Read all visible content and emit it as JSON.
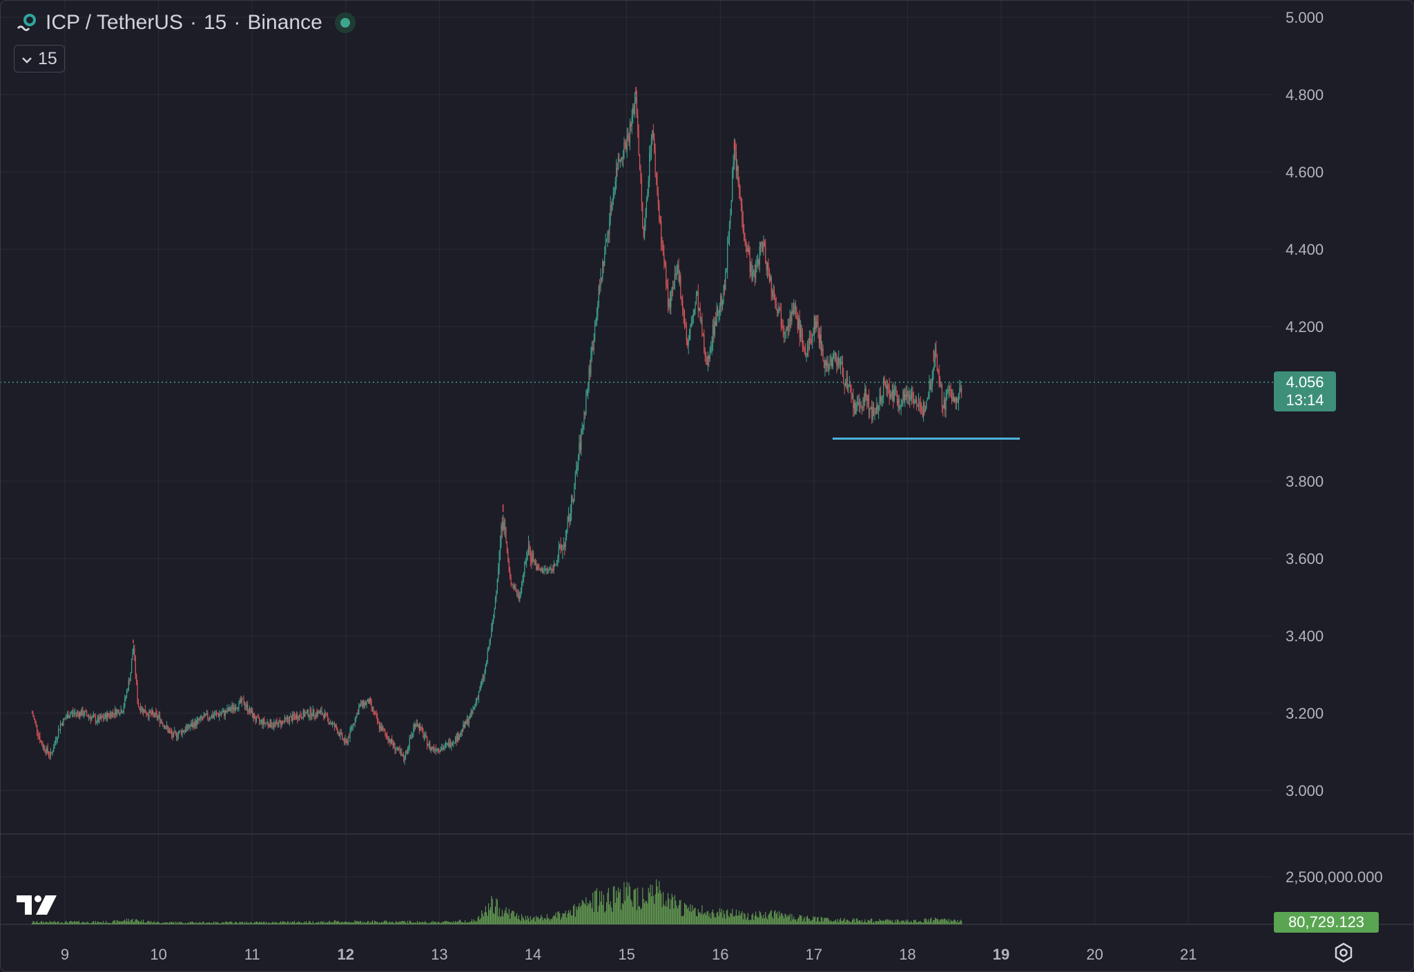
{
  "legend": {
    "symbol": "ICP / TetherUS",
    "interval": "15",
    "exchange": "Binance",
    "separator": "·"
  },
  "interval_button": {
    "label": "15"
  },
  "last_price": {
    "value": "4.056",
    "countdown": "13:14"
  },
  "volume_last": "80,729.123",
  "colors": {
    "background": "#1c1d27",
    "grid": "#2a2c36",
    "up": "#3fa48d",
    "down": "#d9565a",
    "volume": "#6fae58",
    "support_line": "#4db7e0",
    "price_tag": "#3d8f7a",
    "volume_tag": "#5aa552",
    "axis_text": "#b2b5be"
  },
  "icons": [
    "symbol-logo-icon",
    "chevron-down-icon",
    "live-status-icon",
    "tradingview-logo-icon",
    "settings-icon"
  ],
  "chart_data": {
    "type": "candlestick",
    "timeframe": "15",
    "x_tick_labels": [
      "9",
      "10",
      "11",
      "12",
      "13",
      "14",
      "15",
      "16",
      "17",
      "18",
      "19",
      "20",
      "21"
    ],
    "bold_x_ticks": [
      "12",
      "19"
    ],
    "y_tick_labels": [
      "5.000",
      "4.800",
      "4.600",
      "4.400",
      "4.200",
      "3.800",
      "3.600",
      "3.400",
      "3.200",
      "3.000"
    ],
    "volume_tick_labels": [
      "2,500,000.000"
    ],
    "ylim": [
      2.92,
      5.0
    ],
    "grid": true,
    "support_level": {
      "price": 3.91,
      "x_start": 17.2,
      "x_end": 19.2
    },
    "price_path": [
      [
        8.65,
        3.2
      ],
      [
        8.75,
        3.12
      ],
      [
        8.85,
        3.09
      ],
      [
        8.95,
        3.17
      ],
      [
        9.05,
        3.2
      ],
      [
        9.2,
        3.2
      ],
      [
        9.35,
        3.18
      ],
      [
        9.5,
        3.2
      ],
      [
        9.62,
        3.21
      ],
      [
        9.7,
        3.3
      ],
      [
        9.73,
        3.38
      ],
      [
        9.78,
        3.22
      ],
      [
        9.88,
        3.2
      ],
      [
        10.0,
        3.19
      ],
      [
        10.15,
        3.14
      ],
      [
        10.3,
        3.16
      ],
      [
        10.5,
        3.19
      ],
      [
        10.7,
        3.2
      ],
      [
        10.9,
        3.23
      ],
      [
        11.05,
        3.18
      ],
      [
        11.25,
        3.17
      ],
      [
        11.45,
        3.19
      ],
      [
        11.6,
        3.2
      ],
      [
        11.75,
        3.2
      ],
      [
        11.9,
        3.16
      ],
      [
        12.0,
        3.12
      ],
      [
        12.15,
        3.22
      ],
      [
        12.25,
        3.23
      ],
      [
        12.35,
        3.17
      ],
      [
        12.5,
        3.12
      ],
      [
        12.62,
        3.08
      ],
      [
        12.75,
        3.18
      ],
      [
        12.9,
        3.11
      ],
      [
        13.05,
        3.11
      ],
      [
        13.2,
        3.14
      ],
      [
        13.35,
        3.2
      ],
      [
        13.48,
        3.3
      ],
      [
        13.58,
        3.45
      ],
      [
        13.68,
        3.72
      ],
      [
        13.75,
        3.55
      ],
      [
        13.85,
        3.5
      ],
      [
        13.95,
        3.63
      ],
      [
        14.05,
        3.57
      ],
      [
        14.2,
        3.57
      ],
      [
        14.35,
        3.65
      ],
      [
        14.45,
        3.8
      ],
      [
        14.55,
        3.98
      ],
      [
        14.62,
        4.12
      ],
      [
        14.7,
        4.28
      ],
      [
        14.8,
        4.45
      ],
      [
        14.9,
        4.62
      ],
      [
        15.03,
        4.7
      ],
      [
        15.1,
        4.8
      ],
      [
        15.18,
        4.42
      ],
      [
        15.27,
        4.72
      ],
      [
        15.35,
        4.48
      ],
      [
        15.45,
        4.25
      ],
      [
        15.55,
        4.35
      ],
      [
        15.65,
        4.15
      ],
      [
        15.75,
        4.28
      ],
      [
        15.85,
        4.1
      ],
      [
        15.95,
        4.22
      ],
      [
        16.05,
        4.3
      ],
      [
        16.15,
        4.66
      ],
      [
        16.25,
        4.45
      ],
      [
        16.35,
        4.32
      ],
      [
        16.45,
        4.42
      ],
      [
        16.55,
        4.3
      ],
      [
        16.68,
        4.2
      ],
      [
        16.8,
        4.24
      ],
      [
        16.92,
        4.12
      ],
      [
        17.02,
        4.22
      ],
      [
        17.12,
        4.1
      ],
      [
        17.25,
        4.12
      ],
      [
        17.35,
        4.05
      ],
      [
        17.45,
        3.98
      ],
      [
        17.55,
        4.02
      ],
      [
        17.65,
        3.96
      ],
      [
        17.75,
        4.05
      ],
      [
        17.9,
        4.01
      ],
      [
        18.05,
        4.03
      ],
      [
        18.15,
        3.97
      ],
      [
        18.25,
        4.06
      ],
      [
        18.3,
        4.14
      ],
      [
        18.38,
        3.99
      ],
      [
        18.45,
        4.04
      ],
      [
        18.52,
        3.99
      ],
      [
        18.58,
        4.056
      ]
    ],
    "wick_spikes": [
      [
        9.73,
        3.39
      ],
      [
        13.68,
        3.74
      ],
      [
        15.1,
        4.82
      ],
      [
        16.15,
        4.68
      ],
      [
        18.28,
        4.14
      ]
    ],
    "volume_profile": [
      [
        8.65,
        0.06
      ],
      [
        9.5,
        0.06
      ],
      [
        9.7,
        0.12
      ],
      [
        10.0,
        0.05
      ],
      [
        11.0,
        0.05
      ],
      [
        12.0,
        0.07
      ],
      [
        13.0,
        0.06
      ],
      [
        13.4,
        0.1
      ],
      [
        13.55,
        0.5
      ],
      [
        13.7,
        0.35
      ],
      [
        13.9,
        0.15
      ],
      [
        14.2,
        0.18
      ],
      [
        14.4,
        0.3
      ],
      [
        14.6,
        0.55
      ],
      [
        14.8,
        0.72
      ],
      [
        14.95,
        0.78
      ],
      [
        15.1,
        0.75
      ],
      [
        15.28,
        0.88
      ],
      [
        15.45,
        0.55
      ],
      [
        15.7,
        0.35
      ],
      [
        15.9,
        0.3
      ],
      [
        16.1,
        0.32
      ],
      [
        16.3,
        0.22
      ],
      [
        16.6,
        0.25
      ],
      [
        16.9,
        0.15
      ],
      [
        17.2,
        0.12
      ],
      [
        17.6,
        0.1
      ],
      [
        18.0,
        0.08
      ],
      [
        18.3,
        0.12
      ],
      [
        18.58,
        0.08
      ]
    ]
  }
}
